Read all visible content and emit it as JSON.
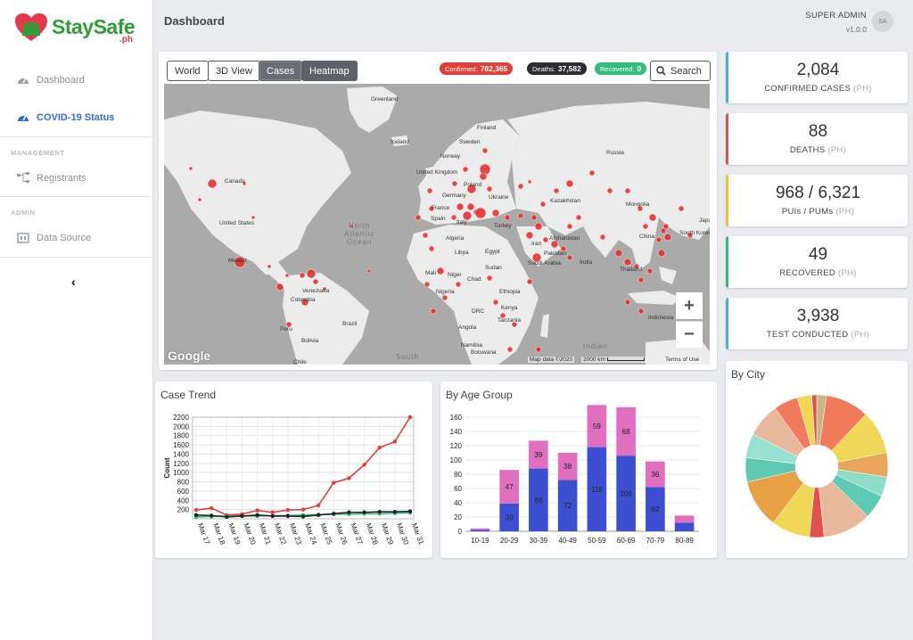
{
  "app": {
    "logo_text": "StaySafe",
    "logo_sub": ".ph"
  },
  "sidebar": {
    "items": [
      {
        "label": "Dashboard",
        "icon": "dashboard-gauge-icon"
      },
      {
        "label": "COVID-19 Status",
        "icon": "dashboard-gauge-icon",
        "active": true
      }
    ],
    "section_management": "MANAGEMENT",
    "management_items": [
      {
        "label": "Registrants",
        "icon": "sitemap-icon"
      }
    ],
    "section_admin": "ADMIN",
    "admin_items": [
      {
        "label": "Data Source",
        "icon": "database-icon"
      }
    ],
    "collapse_glyph": "‹"
  },
  "header": {
    "title": "Dashboard",
    "user": "SUPER ADMIN",
    "version": "v1.0.0",
    "avatar": "SA"
  },
  "map": {
    "buttons": [
      "World",
      "3D View",
      "Cases",
      "Heatmap"
    ],
    "selected": "Cases",
    "confirmed_label": "Confirmed:",
    "confirmed": "782,365",
    "deaths_label": "Deaths:",
    "deaths": "37,582",
    "recovered_label": "Recovered:",
    "recovered": "0",
    "search_label": "Search",
    "ocean_north_atlantic": "North\nAtlantic\nOcean",
    "ocean_south": "South",
    "ocean_indian": "Indian",
    "labels": [
      "Greenland",
      "Iceland",
      "Finland",
      "Sweden",
      "Norway",
      "Russia",
      "United Kingdom",
      "Poland",
      "Germany",
      "Ukraine",
      "France",
      "Spain",
      "Italy",
      "Turkey",
      "Kazakhstan",
      "Mongolia",
      "Canada",
      "United States",
      "Mexico",
      "Venezuela",
      "Colombia",
      "Peru",
      "Brazil",
      "Bolivia",
      "Chile",
      "Algeria",
      "Libya",
      "Egypt",
      "Mali",
      "Niger",
      "Chad",
      "Sudan",
      "Nigeria",
      "Ethiopia",
      "DRC",
      "Kenya",
      "Tanzania",
      "Angola",
      "Namibia",
      "Botswana",
      "Afghanistan",
      "Pakistan",
      "Iran",
      "Saudi Arabia",
      "India",
      "China",
      "Thailand",
      "Indonesia",
      "South Korea",
      "Japan"
    ],
    "zoom_in": "+",
    "zoom_out": "−",
    "google": "Google",
    "footer_data": "Map data ©2020",
    "footer_scale": "2000 km",
    "footer_terms": "Terms of Use"
  },
  "stats": [
    {
      "value": "2,084",
      "label": "CONFIRMED CASES",
      "suffix": "(PH)",
      "color": "#3ab7c9"
    },
    {
      "value": "88",
      "label": "DEATHS",
      "suffix": "(PH)",
      "color": "#e0504a"
    },
    {
      "value": "968 / 6,321",
      "label": "PUIs / PUMs",
      "suffix": "(PH)",
      "color": "#f2c037"
    },
    {
      "value": "49",
      "label": "RECOVERED",
      "suffix": "(PH)",
      "color": "#2fbf7a"
    },
    {
      "value": "3,938",
      "label": "TEST CONDUCTED",
      "suffix": "(PH)",
      "color": "#3ab7c9"
    }
  ],
  "trend": {
    "title": "Case Trend"
  },
  "age": {
    "title": "By Age Group"
  },
  "city": {
    "title": "By City"
  },
  "chart_data": [
    {
      "type": "line",
      "title": "Case Trend",
      "ylabel": "Count",
      "x": [
        "Mar 17",
        "Mar 18",
        "Mar 19",
        "Mar 20",
        "Mar 21",
        "Mar 22",
        "Mar 23",
        "Mar 24",
        "Mar 25",
        "Mar 26",
        "Mar 27",
        "Mar 28",
        "Mar 29",
        "Mar 30",
        "Mar 31"
      ],
      "yticks": [
        200,
        400,
        600,
        800,
        1000,
        1200,
        1400,
        1600,
        1800,
        2000,
        2200
      ],
      "ylim": [
        0,
        2200
      ],
      "series": [
        {
          "color": "#e0403a",
          "values": [
            190,
            230,
            80,
            100,
            180,
            140,
            190,
            200,
            290,
            780,
            880,
            1170,
            1540,
            1670,
            2200
          ]
        },
        {
          "color": "#2fbf7a",
          "values": [
            40,
            50,
            60,
            60,
            60,
            70,
            70,
            80,
            90,
            100,
            100,
            110,
            110,
            120,
            130
          ]
        },
        {
          "color": "#222222",
          "values": [
            80,
            70,
            40,
            60,
            80,
            60,
            60,
            50,
            80,
            110,
            140,
            140,
            150,
            150,
            160
          ]
        }
      ]
    },
    {
      "type": "bar",
      "title": "By Age Group",
      "categories": [
        "10-19",
        "20-29",
        "30-39",
        "40-49",
        "50-59",
        "60-69",
        "70-79",
        "80-89"
      ],
      "yticks": [
        0,
        20,
        40,
        60,
        80,
        100,
        120,
        140,
        160
      ],
      "ylim": [
        0,
        160
      ],
      "series": [
        {
          "color": "#3b4fd0",
          "values": [
            2,
            39,
            88,
            72,
            118,
            106,
            62,
            12
          ]
        },
        {
          "color": "#e06fc0",
          "values": [
            2,
            47,
            39,
            38,
            59,
            68,
            36,
            10
          ]
        }
      ],
      "labels_bottom": [
        "",
        "39",
        "88",
        "72",
        "118",
        "106",
        "62",
        ""
      ],
      "labels_top": [
        "",
        "47",
        "39",
        "38",
        "59",
        "68",
        "36",
        ""
      ]
    },
    {
      "type": "pie",
      "title": "By City",
      "donut": true,
      "slices": [
        {
          "value": 2,
          "color": "#c9b48a"
        },
        {
          "value": 9,
          "color": "#f07a5c"
        },
        {
          "value": 9,
          "color": "#f0d857"
        },
        {
          "value": 5,
          "color": "#e8a65c"
        },
        {
          "value": 4,
          "color": "#8fdcc7"
        },
        {
          "value": 5,
          "color": "#5fc9b4"
        },
        {
          "value": 10,
          "color": "#e8b89c"
        },
        {
          "value": 3,
          "color": "#e05050"
        },
        {
          "value": 8,
          "color": "#f0d857"
        },
        {
          "value": 10,
          "color": "#e8a045"
        },
        {
          "value": 5,
          "color": "#5fc9b4"
        },
        {
          "value": 5,
          "color": "#98e0cf"
        },
        {
          "value": 7,
          "color": "#e8b89c"
        },
        {
          "value": 5,
          "color": "#f07a5c"
        },
        {
          "value": 3,
          "color": "#f0d857"
        },
        {
          "value": 1,
          "color": "#e05050"
        }
      ]
    }
  ]
}
